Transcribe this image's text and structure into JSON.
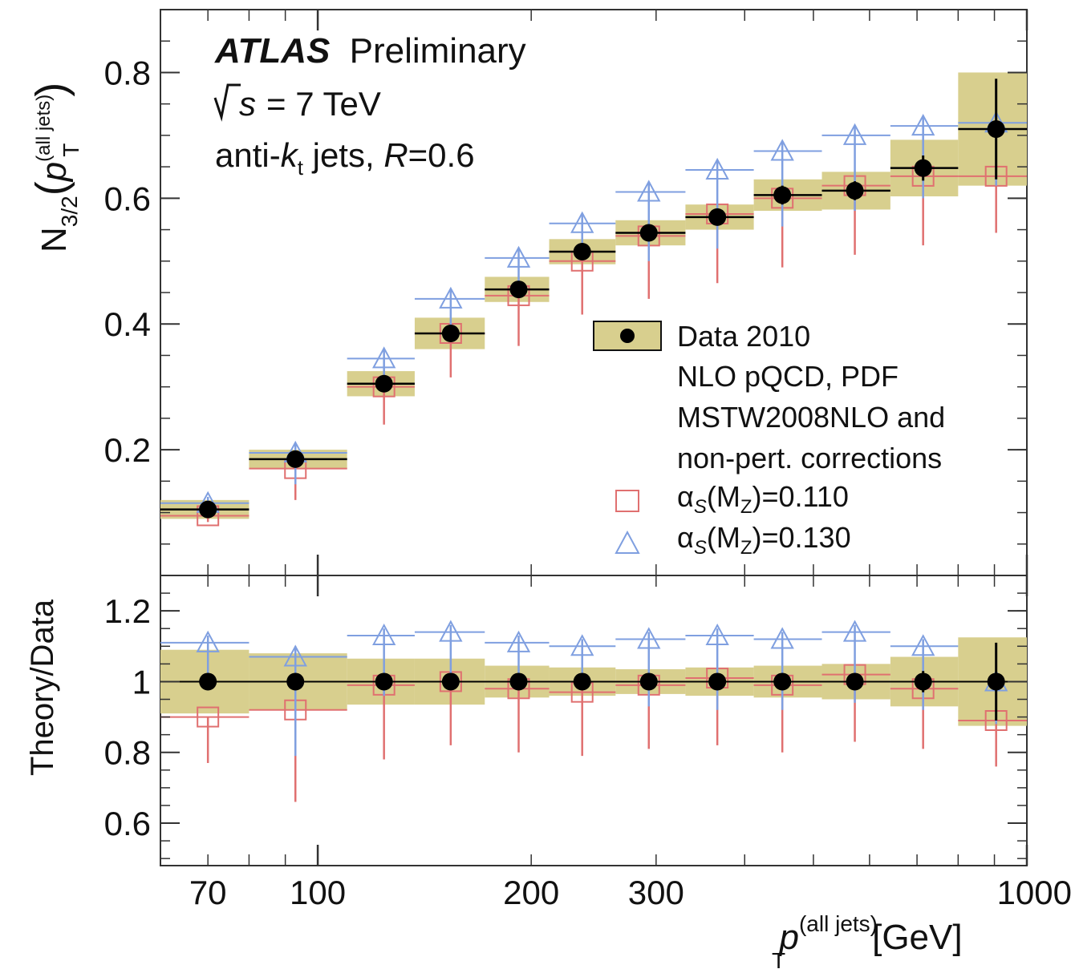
{
  "annotations": {
    "experiment": "ATLAS",
    "status": "Preliminary",
    "sqrt_s_symbol": "s",
    "energy": "= 7 TeV",
    "jets_prefix": "anti-",
    "jets_k": "k",
    "jets_sub": "t",
    "jets_mid": " jets, ",
    "jets_R": "R",
    "jets_suffix": "=0.6"
  },
  "legend": {
    "data_label": "Data 2010",
    "theory_line1": "NLO pQCD, PDF",
    "theory_line2": "MSTW2008NLO and",
    "theory_line3": "non-pert. corrections",
    "alpha1_prefix": "α",
    "alpha1_sub": "S",
    "alpha1_mid": "(M",
    "alpha1_sub2": "Z",
    "alpha1_value": ")=0.110",
    "alpha2_prefix": "α",
    "alpha2_sub": "S",
    "alpha2_mid": "(M",
    "alpha2_sub2": "Z",
    "alpha2_value": ")=0.130"
  },
  "axes": {
    "xlabel_p": "p",
    "xlabel_sup": "(all jets)",
    "xlabel_sub": "T",
    "xlabel_unit": "[GeV]",
    "ylabel_top_N": "N",
    "ylabel_top_sub": "3/2",
    "ylabel_top_p": "p",
    "ylabel_top_sup": "(all jets)",
    "ylabel_top_psub": "T",
    "ylabel_bottom": "Theory/Data"
  },
  "chart_data": [
    {
      "type": "scatter",
      "panel": "top",
      "xscale": "log",
      "xlim": [
        60,
        1000
      ],
      "ylim": [
        0,
        0.9
      ],
      "yticks": [
        {
          "v": 0.2,
          "label": "0.2"
        },
        {
          "v": 0.4,
          "label": "0.4"
        },
        {
          "v": 0.6,
          "label": "0.6"
        },
        {
          "v": 0.8,
          "label": "0.8"
        }
      ],
      "bins": [
        {
          "lo": 60,
          "hi": 80,
          "x": 70,
          "data": 0.105,
          "syst": 0.015,
          "stat": 0.01,
          "th110": 0.095,
          "th110_lo": 0.085,
          "th110_hi": 0.105,
          "th130": 0.115,
          "th130_lo": 0.105,
          "th130_hi": 0.125
        },
        {
          "lo": 80,
          "hi": 110,
          "x": 93,
          "data": 0.185,
          "syst": 0.015,
          "stat": 0.01,
          "th110": 0.17,
          "th110_lo": 0.12,
          "th110_hi": 0.185,
          "th130": 0.195,
          "th130_lo": 0.145,
          "th130_hi": 0.21
        },
        {
          "lo": 110,
          "hi": 137,
          "x": 124,
          "data": 0.305,
          "syst": 0.02,
          "stat": 0.01,
          "th110": 0.3,
          "th110_lo": 0.24,
          "th110_hi": 0.32,
          "th130": 0.345,
          "th130_lo": 0.3,
          "th130_hi": 0.36
        },
        {
          "lo": 137,
          "hi": 172,
          "x": 154,
          "data": 0.385,
          "syst": 0.025,
          "stat": 0.01,
          "th110": 0.385,
          "th110_lo": 0.315,
          "th110_hi": 0.4,
          "th130": 0.44,
          "th130_lo": 0.395,
          "th130_hi": 0.455
        },
        {
          "lo": 172,
          "hi": 212,
          "x": 192,
          "data": 0.455,
          "syst": 0.02,
          "stat": 0.01,
          "th110": 0.445,
          "th110_lo": 0.365,
          "th110_hi": 0.46,
          "th130": 0.505,
          "th130_lo": 0.455,
          "th130_hi": 0.52
        },
        {
          "lo": 212,
          "hi": 263,
          "x": 236,
          "data": 0.515,
          "syst": 0.02,
          "stat": 0.01,
          "th110": 0.5,
          "th110_lo": 0.415,
          "th110_hi": 0.515,
          "th130": 0.56,
          "th130_lo": 0.51,
          "th130_hi": 0.575
        },
        {
          "lo": 263,
          "hi": 330,
          "x": 293,
          "data": 0.545,
          "syst": 0.02,
          "stat": 0.01,
          "th110": 0.54,
          "th110_lo": 0.44,
          "th110_hi": 0.555,
          "th130": 0.61,
          "th130_lo": 0.5,
          "th130_hi": 0.625
        },
        {
          "lo": 330,
          "hi": 412,
          "x": 366,
          "data": 0.57,
          "syst": 0.02,
          "stat": 0.01,
          "th110": 0.575,
          "th110_lo": 0.465,
          "th110_hi": 0.59,
          "th130": 0.645,
          "th130_lo": 0.52,
          "th130_hi": 0.66
        },
        {
          "lo": 412,
          "hi": 514,
          "x": 452,
          "data": 0.605,
          "syst": 0.025,
          "stat": 0.015,
          "th110": 0.6,
          "th110_lo": 0.49,
          "th110_hi": 0.615,
          "th130": 0.675,
          "th130_lo": 0.555,
          "th130_hi": 0.69
        },
        {
          "lo": 514,
          "hi": 642,
          "x": 572,
          "data": 0.612,
          "syst": 0.03,
          "stat": 0.015,
          "th110": 0.62,
          "th110_lo": 0.51,
          "th110_hi": 0.635,
          "th130": 0.7,
          "th130_lo": 0.58,
          "th130_hi": 0.715
        },
        {
          "lo": 642,
          "hi": 800,
          "x": 714,
          "data": 0.648,
          "syst": 0.045,
          "stat": 0.02,
          "th110": 0.635,
          "th110_lo": 0.525,
          "th110_hi": 0.65,
          "th130": 0.715,
          "th130_lo": 0.6,
          "th130_hi": 0.73
        },
        {
          "lo": 800,
          "hi": 1000,
          "x": 905,
          "data": 0.71,
          "syst": 0.09,
          "stat": 0.08,
          "th110": 0.635,
          "th110_lo": 0.545,
          "th110_hi": 0.65,
          "th130": 0.72,
          "th130_lo": 0.62,
          "th130_hi": 0.735
        }
      ]
    },
    {
      "type": "scatter",
      "panel": "bottom",
      "ylabel": "Theory/Data",
      "xscale": "log",
      "xlim": [
        60,
        1000
      ],
      "ylim": [
        0.48,
        1.3
      ],
      "xticks": [
        {
          "v": 70,
          "label": "70"
        },
        {
          "v": 100,
          "label": "100"
        },
        {
          "v": 200,
          "label": "200"
        },
        {
          "v": 300,
          "label": "300"
        },
        {
          "v": 1000,
          "label": "1000"
        }
      ],
      "yticks": [
        {
          "v": 0.6,
          "label": "0.6"
        },
        {
          "v": 0.8,
          "label": "0.8"
        },
        {
          "v": 1.0,
          "label": "1"
        },
        {
          "v": 1.2,
          "label": "1.2"
        }
      ],
      "bins": [
        {
          "lo": 60,
          "hi": 80,
          "x": 70,
          "data": 1.0,
          "syst": 0.09,
          "stat": 0.0,
          "r110": 0.9,
          "r110_lo": 0.77,
          "r110_hi": 0.9,
          "r130": 1.11,
          "r130_lo": 1.0,
          "r130_hi": 1.13
        },
        {
          "lo": 80,
          "hi": 110,
          "x": 93,
          "data": 1.0,
          "syst": 0.08,
          "stat": 0.0,
          "r110": 0.92,
          "r110_lo": 0.66,
          "r110_hi": 0.95,
          "r130": 1.07,
          "r130_lo": 0.79,
          "r130_hi": 1.1
        },
        {
          "lo": 110,
          "hi": 137,
          "x": 124,
          "data": 1.0,
          "syst": 0.065,
          "stat": 0.0,
          "r110": 0.99,
          "r110_lo": 0.78,
          "r110_hi": 1.0,
          "r130": 1.13,
          "r130_lo": 0.96,
          "r130_hi": 1.15
        },
        {
          "lo": 137,
          "hi": 172,
          "x": 154,
          "data": 1.0,
          "syst": 0.065,
          "stat": 0.0,
          "r110": 1.0,
          "r110_lo": 0.82,
          "r110_hi": 1.01,
          "r130": 1.14,
          "r130_lo": 1.0,
          "r130_hi": 1.16
        },
        {
          "lo": 172,
          "hi": 212,
          "x": 192,
          "data": 1.0,
          "syst": 0.045,
          "stat": 0.0,
          "r110": 0.98,
          "r110_lo": 0.8,
          "r110_hi": 0.99,
          "r130": 1.11,
          "r130_lo": 1.0,
          "r130_hi": 1.13
        },
        {
          "lo": 212,
          "hi": 263,
          "x": 236,
          "data": 1.0,
          "syst": 0.04,
          "stat": 0.0,
          "r110": 0.97,
          "r110_lo": 0.79,
          "r110_hi": 0.99,
          "r130": 1.1,
          "r130_lo": 0.99,
          "r130_hi": 1.12
        },
        {
          "lo": 263,
          "hi": 330,
          "x": 293,
          "data": 1.0,
          "syst": 0.035,
          "stat": 0.0,
          "r110": 0.99,
          "r110_lo": 0.81,
          "r110_hi": 1.0,
          "r130": 1.12,
          "r130_lo": 0.93,
          "r130_hi": 1.14
        },
        {
          "lo": 330,
          "hi": 412,
          "x": 366,
          "data": 1.0,
          "syst": 0.04,
          "stat": 0.0,
          "r110": 1.01,
          "r110_lo": 0.82,
          "r110_hi": 1.02,
          "r130": 1.13,
          "r130_lo": 0.92,
          "r130_hi": 1.15
        },
        {
          "lo": 412,
          "hi": 514,
          "x": 452,
          "data": 1.0,
          "syst": 0.045,
          "stat": 0.0,
          "r110": 0.99,
          "r110_lo": 0.8,
          "r110_hi": 1.0,
          "r130": 1.12,
          "r130_lo": 0.92,
          "r130_hi": 1.14
        },
        {
          "lo": 514,
          "hi": 642,
          "x": 572,
          "data": 1.0,
          "syst": 0.05,
          "stat": 0.0,
          "r110": 1.02,
          "r110_lo": 0.83,
          "r110_hi": 1.03,
          "r130": 1.14,
          "r130_lo": 0.94,
          "r130_hi": 1.16
        },
        {
          "lo": 642,
          "hi": 800,
          "x": 714,
          "data": 1.0,
          "syst": 0.07,
          "stat": 0.03,
          "r110": 0.98,
          "r110_lo": 0.81,
          "r110_hi": 0.99,
          "r130": 1.1,
          "r130_lo": 0.92,
          "r130_hi": 1.12
        },
        {
          "lo": 800,
          "hi": 1000,
          "x": 905,
          "data": 1.0,
          "syst": 0.125,
          "stat": 0.11,
          "r110": 0.89,
          "r110_lo": 0.76,
          "r110_hi": 0.9,
          "r130": 1.0,
          "r130_lo": 0.88,
          "r130_hi": 1.02
        }
      ]
    }
  ],
  "colors": {
    "band": "#d8cf8e",
    "band_stroke": "#8a8240",
    "data": "#000000",
    "alpha110": "#e07070",
    "alpha130": "#7f9fe0"
  }
}
